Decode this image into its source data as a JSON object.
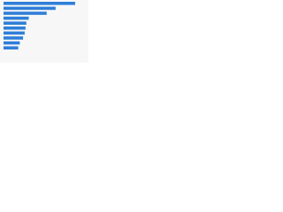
{
  "chart_data": {
    "type": "bar",
    "orientation": "horizontal",
    "categories": [
      null,
      null,
      null,
      null,
      null,
      null,
      null,
      null,
      null,
      null
    ],
    "values": [
      88,
      64,
      53,
      31,
      28,
      27,
      26,
      24,
      20,
      18
    ],
    "color": "#2f7ed8",
    "xlim": [
      0,
      100
    ]
  }
}
